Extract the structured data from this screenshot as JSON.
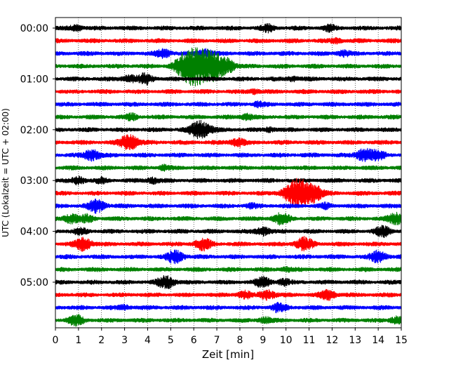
{
  "chart_data": {
    "type": "line",
    "subtype": "helicorder",
    "xlabel": "Zeit  [min]",
    "ylabel": "UTC (Lokalzeit = UTC + 02:00)",
    "xlim": [
      0,
      15
    ],
    "x_ticks": [
      "0",
      "1",
      "2",
      "3",
      "4",
      "5",
      "6",
      "7",
      "8",
      "9",
      "10",
      "11",
      "12",
      "13",
      "14",
      "15"
    ],
    "y_ticks": [
      "00:00",
      "01:00",
      "02:00",
      "03:00",
      "04:00",
      "05:00"
    ],
    "grid": "vertical dotted",
    "trace_minutes_per_line": 15,
    "trace_colors": [
      "#000000",
      "#ff0000",
      "#0000ff",
      "#008000"
    ],
    "traces": [
      {
        "start": "00:00",
        "color": "#000000",
        "events": [
          [
            0.9,
            0.4
          ],
          [
            9.2,
            0.5
          ],
          [
            11.9,
            0.4
          ]
        ]
      },
      {
        "start": "00:15",
        "color": "#ff0000",
        "events": [
          [
            12.2,
            0.3
          ]
        ]
      },
      {
        "start": "00:30",
        "color": "#0000ff",
        "events": [
          [
            4.7,
            0.6
          ],
          [
            6.5,
            0.6
          ],
          [
            12.5,
            0.4
          ]
        ]
      },
      {
        "start": "00:45",
        "color": "#008000",
        "events": [
          [
            5.7,
            1.6
          ],
          [
            6.2,
            2.0
          ],
          [
            6.9,
            1.6
          ],
          [
            7.5,
            0.7
          ]
        ]
      },
      {
        "start": "01:00",
        "color": "#000000",
        "events": [
          [
            3.2,
            0.5
          ],
          [
            3.9,
            0.7
          ],
          [
            10.3,
            0.3
          ]
        ]
      },
      {
        "start": "01:15",
        "color": "#ff0000",
        "events": [
          [
            8.6,
            0.3
          ]
        ]
      },
      {
        "start": "01:30",
        "color": "#0000ff",
        "events": [
          [
            8.8,
            0.3
          ]
        ]
      },
      {
        "start": "01:45",
        "color": "#008000",
        "events": [
          [
            3.3,
            0.4
          ],
          [
            8.3,
            0.4
          ]
        ]
      },
      {
        "start": "02:00",
        "color": "#000000",
        "events": [
          [
            6.3,
            1.3
          ],
          [
            9.3,
            0.3
          ]
        ]
      },
      {
        "start": "02:15",
        "color": "#ff0000",
        "events": [
          [
            3.2,
            1.1
          ],
          [
            7.9,
            0.6
          ]
        ]
      },
      {
        "start": "02:30",
        "color": "#0000ff",
        "events": [
          [
            1.6,
            0.8
          ],
          [
            13.4,
            0.9
          ],
          [
            14.0,
            0.6
          ]
        ]
      },
      {
        "start": "02:45",
        "color": "#008000",
        "events": [
          [
            4.7,
            0.3
          ]
        ]
      },
      {
        "start": "03:00",
        "color": "#000000",
        "events": [
          [
            1.0,
            0.5
          ],
          [
            2.0,
            0.3
          ],
          [
            4.2,
            0.4
          ]
        ]
      },
      {
        "start": "03:15",
        "color": "#ff0000",
        "events": [
          [
            10.3,
            1.3
          ],
          [
            10.8,
            1.5
          ],
          [
            11.3,
            0.7
          ]
        ]
      },
      {
        "start": "03:30",
        "color": "#0000ff",
        "events": [
          [
            1.8,
            0.9
          ],
          [
            8.5,
            0.3
          ],
          [
            11.7,
            0.3
          ]
        ]
      },
      {
        "start": "03:45",
        "color": "#008000",
        "events": [
          [
            0.7,
            0.7
          ],
          [
            1.4,
            0.5
          ],
          [
            9.8,
            0.8
          ],
          [
            14.8,
            0.8
          ]
        ]
      },
      {
        "start": "04:00",
        "color": "#000000",
        "events": [
          [
            1.1,
            0.4
          ],
          [
            9.0,
            0.6
          ],
          [
            14.2,
            0.7
          ]
        ]
      },
      {
        "start": "04:15",
        "color": "#ff0000",
        "events": [
          [
            1.2,
            0.9
          ],
          [
            6.4,
            0.8
          ],
          [
            10.8,
            0.9
          ]
        ]
      },
      {
        "start": "04:30",
        "color": "#0000ff",
        "events": [
          [
            5.2,
            0.9
          ],
          [
            14.0,
            0.8
          ]
        ]
      },
      {
        "start": "04:45",
        "color": "#008000",
        "events": [
          [
            10.0,
            0.3
          ]
        ]
      },
      {
        "start": "05:00",
        "color": "#000000",
        "events": [
          [
            4.8,
            0.9
          ],
          [
            9.0,
            0.7
          ],
          [
            9.9,
            0.4
          ]
        ]
      },
      {
        "start": "05:15",
        "color": "#ff0000",
        "events": [
          [
            8.2,
            0.5
          ],
          [
            9.2,
            0.7
          ],
          [
            11.8,
            0.7
          ]
        ]
      },
      {
        "start": "05:30",
        "color": "#0000ff",
        "events": [
          [
            9.7,
            0.6
          ],
          [
            3.0,
            0.3
          ]
        ]
      },
      {
        "start": "05:45",
        "color": "#008000",
        "events": [
          [
            0.9,
            0.7
          ],
          [
            9.1,
            0.4
          ],
          [
            14.8,
            0.5
          ]
        ]
      }
    ]
  }
}
